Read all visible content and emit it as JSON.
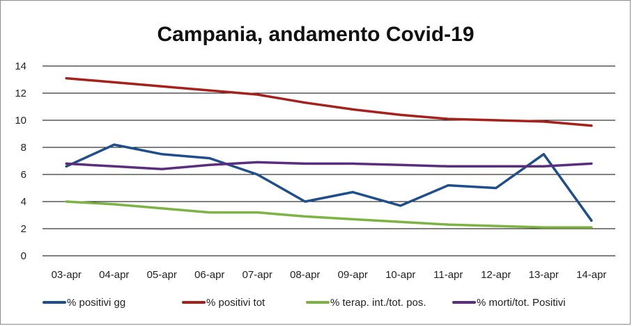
{
  "chart_data": {
    "type": "line",
    "title": "Campania, andamento Covid-19",
    "xlabel": "",
    "ylabel": "",
    "categories": [
      "03-apr",
      "04-apr",
      "05-apr",
      "06-apr",
      "07-apr",
      "08-apr",
      "09-apr",
      "10-apr",
      "11-apr",
      "12-apr",
      "13-apr",
      "14-apr"
    ],
    "ylim": [
      0,
      14
    ],
    "yticks": [
      0,
      2,
      4,
      6,
      8,
      10,
      12,
      14
    ],
    "grid": "horizontal",
    "legend_position": "bottom",
    "series": [
      {
        "name": "% positivi gg",
        "color": "#1f4e8c",
        "values": [
          6.6,
          8.2,
          7.5,
          7.2,
          6.0,
          4.0,
          4.7,
          3.7,
          5.2,
          5.0,
          7.5,
          2.6
        ]
      },
      {
        "name": "% positivi tot",
        "color": "#a5211c",
        "values": [
          13.1,
          12.8,
          12.5,
          12.2,
          11.9,
          11.3,
          10.8,
          10.4,
          10.1,
          10.0,
          9.9,
          9.6
        ]
      },
      {
        "name": "% terap. int./tot. pos.",
        "color": "#7cb342",
        "values": [
          4.0,
          3.8,
          3.5,
          3.2,
          3.2,
          2.9,
          2.7,
          2.5,
          2.3,
          2.2,
          2.1,
          2.1
        ]
      },
      {
        "name": "% morti/tot. Positivi",
        "color": "#5b2d7f",
        "values": [
          6.8,
          6.6,
          6.4,
          6.7,
          6.9,
          6.8,
          6.8,
          6.7,
          6.6,
          6.6,
          6.6,
          6.8
        ]
      }
    ]
  }
}
